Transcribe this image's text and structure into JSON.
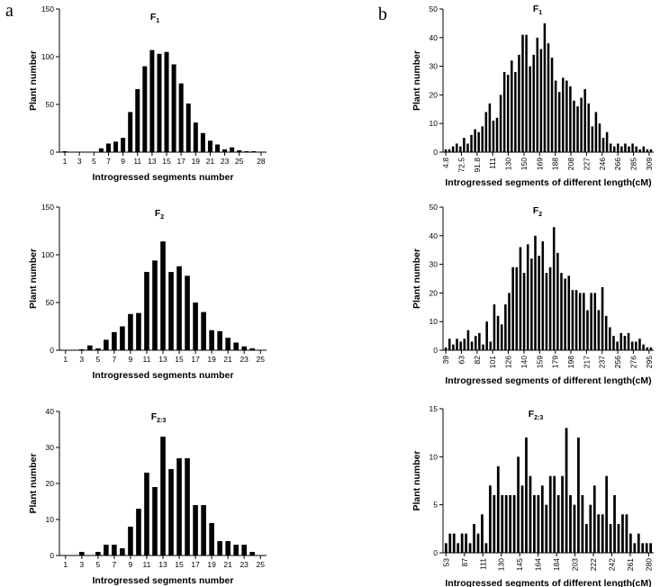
{
  "panel_labels": {
    "left": "a",
    "right": "b"
  },
  "chart_data": [
    {
      "id": "a-f1",
      "type": "bar",
      "title": "F",
      "title_subscript": "1",
      "xlabel": "Introgressed segments number",
      "ylabel": "Plant number",
      "ylim": [
        0,
        150
      ],
      "yticks": [
        0,
        50,
        100,
        150
      ],
      "x": [
        1,
        2,
        3,
        4,
        5,
        6,
        7,
        8,
        9,
        10,
        11,
        12,
        13,
        14,
        15,
        16,
        17,
        18,
        19,
        20,
        21,
        22,
        23,
        24,
        25,
        26,
        27,
        28
      ],
      "values": [
        1,
        0,
        0,
        0,
        0,
        4,
        9,
        11,
        15,
        42,
        66,
        90,
        107,
        103,
        105,
        92,
        72,
        51,
        31,
        20,
        12,
        8,
        3,
        5,
        2,
        1,
        1,
        0
      ],
      "xtick_labels": [
        "1",
        "3",
        "5",
        "7",
        "9",
        "11",
        "13",
        "15",
        "17",
        "19",
        "21",
        "23",
        "25",
        "28"
      ]
    },
    {
      "id": "a-f2",
      "type": "bar",
      "title": "F",
      "title_subscript": "2",
      "xlabel": "Introgressed segments number",
      "ylabel": "Plant number",
      "ylim": [
        0,
        150
      ],
      "yticks": [
        0,
        50,
        100,
        150
      ],
      "x": [
        1,
        2,
        3,
        4,
        5,
        6,
        7,
        8,
        9,
        10,
        11,
        12,
        13,
        14,
        15,
        16,
        17,
        18,
        19,
        20,
        21,
        22,
        23,
        24,
        25
      ],
      "values": [
        0,
        0,
        1,
        5,
        2,
        11,
        19,
        25,
        38,
        39,
        82,
        94,
        114,
        82,
        88,
        78,
        50,
        40,
        21,
        20,
        13,
        8,
        4,
        2,
        0
      ],
      "xtick_labels": [
        "1",
        "3",
        "5",
        "7",
        "9",
        "11",
        "13",
        "15",
        "17",
        "19",
        "21",
        "23",
        "25"
      ]
    },
    {
      "id": "a-f23",
      "type": "bar",
      "title": "F",
      "title_subscript": "2:3",
      "xlabel": "Introgressed segments number",
      "ylabel": "Plant number",
      "ylim": [
        0,
        40
      ],
      "yticks": [
        0,
        10,
        20,
        30,
        40
      ],
      "x": [
        1,
        2,
        3,
        4,
        5,
        6,
        7,
        8,
        9,
        10,
        11,
        12,
        13,
        14,
        15,
        16,
        17,
        18,
        19,
        20,
        21,
        22,
        23,
        24,
        25
      ],
      "values": [
        0,
        0,
        1,
        0,
        1,
        3,
        3,
        2,
        8,
        13,
        23,
        19,
        33,
        24,
        27,
        27,
        14,
        14,
        9,
        4,
        4,
        3,
        3,
        1,
        0
      ],
      "xtick_labels": [
        "1",
        "3",
        "5",
        "7",
        "9",
        "11",
        "13",
        "15",
        "17",
        "19",
        "21",
        "23",
        "25"
      ]
    },
    {
      "id": "b-f1",
      "type": "bar",
      "title": "F",
      "title_subscript": "1",
      "xlabel": "Introgressed segments of different length(cM)",
      "ylabel": "Plant number",
      "ylim": [
        0,
        50
      ],
      "yticks": [
        0,
        10,
        20,
        30,
        40,
        50
      ],
      "values": [
        1,
        1,
        2,
        3,
        2,
        5,
        3,
        6,
        8,
        7,
        9,
        14,
        17,
        11,
        12,
        20,
        28,
        27,
        32,
        28,
        34,
        41,
        41,
        30,
        34,
        40,
        36,
        45,
        38,
        33,
        25,
        21,
        26,
        25,
        23,
        18,
        16,
        19,
        22,
        17,
        9,
        14,
        10,
        5,
        7,
        3,
        2,
        3,
        2,
        3,
        2,
        3,
        2,
        1,
        2,
        1,
        1
      ],
      "xtick_labels": [
        "4.8",
        "72.5",
        "91.8",
        "111",
        "130",
        "150",
        "169",
        "188",
        "208",
        "227",
        "246",
        "266",
        "285",
        "309"
      ]
    },
    {
      "id": "b-f2",
      "type": "bar",
      "title": "F",
      "title_subscript": "2",
      "xlabel": "Introgressed segments of different length(cM)",
      "ylabel": "Plant number",
      "ylim": [
        0,
        50
      ],
      "yticks": [
        0,
        10,
        20,
        30,
        40,
        50
      ],
      "values": [
        1,
        4,
        2,
        4,
        3,
        4,
        7,
        3,
        5,
        6,
        2,
        10,
        3,
        16,
        12,
        9,
        16,
        20,
        29,
        29,
        36,
        27,
        37,
        32,
        40,
        33,
        38,
        27,
        29,
        43,
        34,
        27,
        25,
        26,
        21,
        21,
        20,
        20,
        14,
        20,
        20,
        14,
        22,
        12,
        8,
        5,
        3,
        6,
        5,
        6,
        3,
        3,
        4,
        2,
        1,
        1
      ],
      "xtick_labels": [
        "39",
        "63",
        "82",
        "101",
        "126",
        "140",
        "159",
        "179",
        "198",
        "217",
        "237",
        "256",
        "276",
        "295"
      ]
    },
    {
      "id": "b-f23",
      "type": "bar",
      "title": "F",
      "title_subscript": "2:3",
      "xlabel": "Introgressed segments of different length(cM)",
      "ylabel": "Plant number",
      "ylim": [
        0,
        15
      ],
      "yticks": [
        0,
        5,
        10,
        15
      ],
      "values": [
        1,
        2,
        2,
        1,
        2,
        2,
        1,
        3,
        2,
        4,
        1,
        7,
        6,
        9,
        6,
        6,
        6,
        6,
        10,
        7,
        12,
        8,
        6,
        6,
        7,
        5,
        8,
        8,
        6,
        8,
        13,
        6,
        5,
        12,
        6,
        3,
        5,
        7,
        4,
        4,
        8,
        3,
        6,
        3,
        4,
        4,
        2,
        1,
        2,
        1,
        1,
        1
      ],
      "xtick_labels": [
        "53",
        "87",
        "111",
        "130",
        "145",
        "164",
        "184",
        "203",
        "222",
        "242",
        "261",
        "280"
      ]
    }
  ]
}
